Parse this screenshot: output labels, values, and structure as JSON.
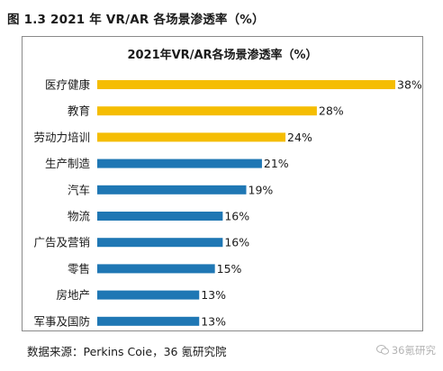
{
  "figure": {
    "caption": "图 1.3 2021 年 VR/AR 各场景渗透率（%）",
    "source": "数据来源：Perkins Coie，36 氪研究院",
    "watermark": "36氪研究"
  },
  "colors": {
    "highlight_bar": "#F5BD02",
    "regular_bar": "#1F77B4",
    "frame": "#8a8a8a"
  },
  "chart_data": {
    "type": "bar",
    "orientation": "horizontal",
    "title": "2021年VR/AR各场景渗透率（%）",
    "xlabel": "",
    "ylabel": "",
    "xlim": [
      0,
      38
    ],
    "grid": false,
    "legend": "none",
    "categories": [
      "医疗健康",
      "教育",
      "劳动力培训",
      "生产制造",
      "汽车",
      "物流",
      "广告及营销",
      "零售",
      "房地产",
      "军事及国防"
    ],
    "values": [
      38,
      28,
      24,
      21,
      19,
      16,
      16,
      15,
      13,
      13
    ],
    "labels": [
      "38%",
      "28%",
      "24%",
      "21%",
      "19%",
      "16%",
      "16%",
      "15%",
      "13%",
      "13%"
    ],
    "bar_colors": [
      "highlight_bar",
      "highlight_bar",
      "highlight_bar",
      "regular_bar",
      "regular_bar",
      "regular_bar",
      "regular_bar",
      "regular_bar",
      "regular_bar",
      "regular_bar"
    ]
  }
}
